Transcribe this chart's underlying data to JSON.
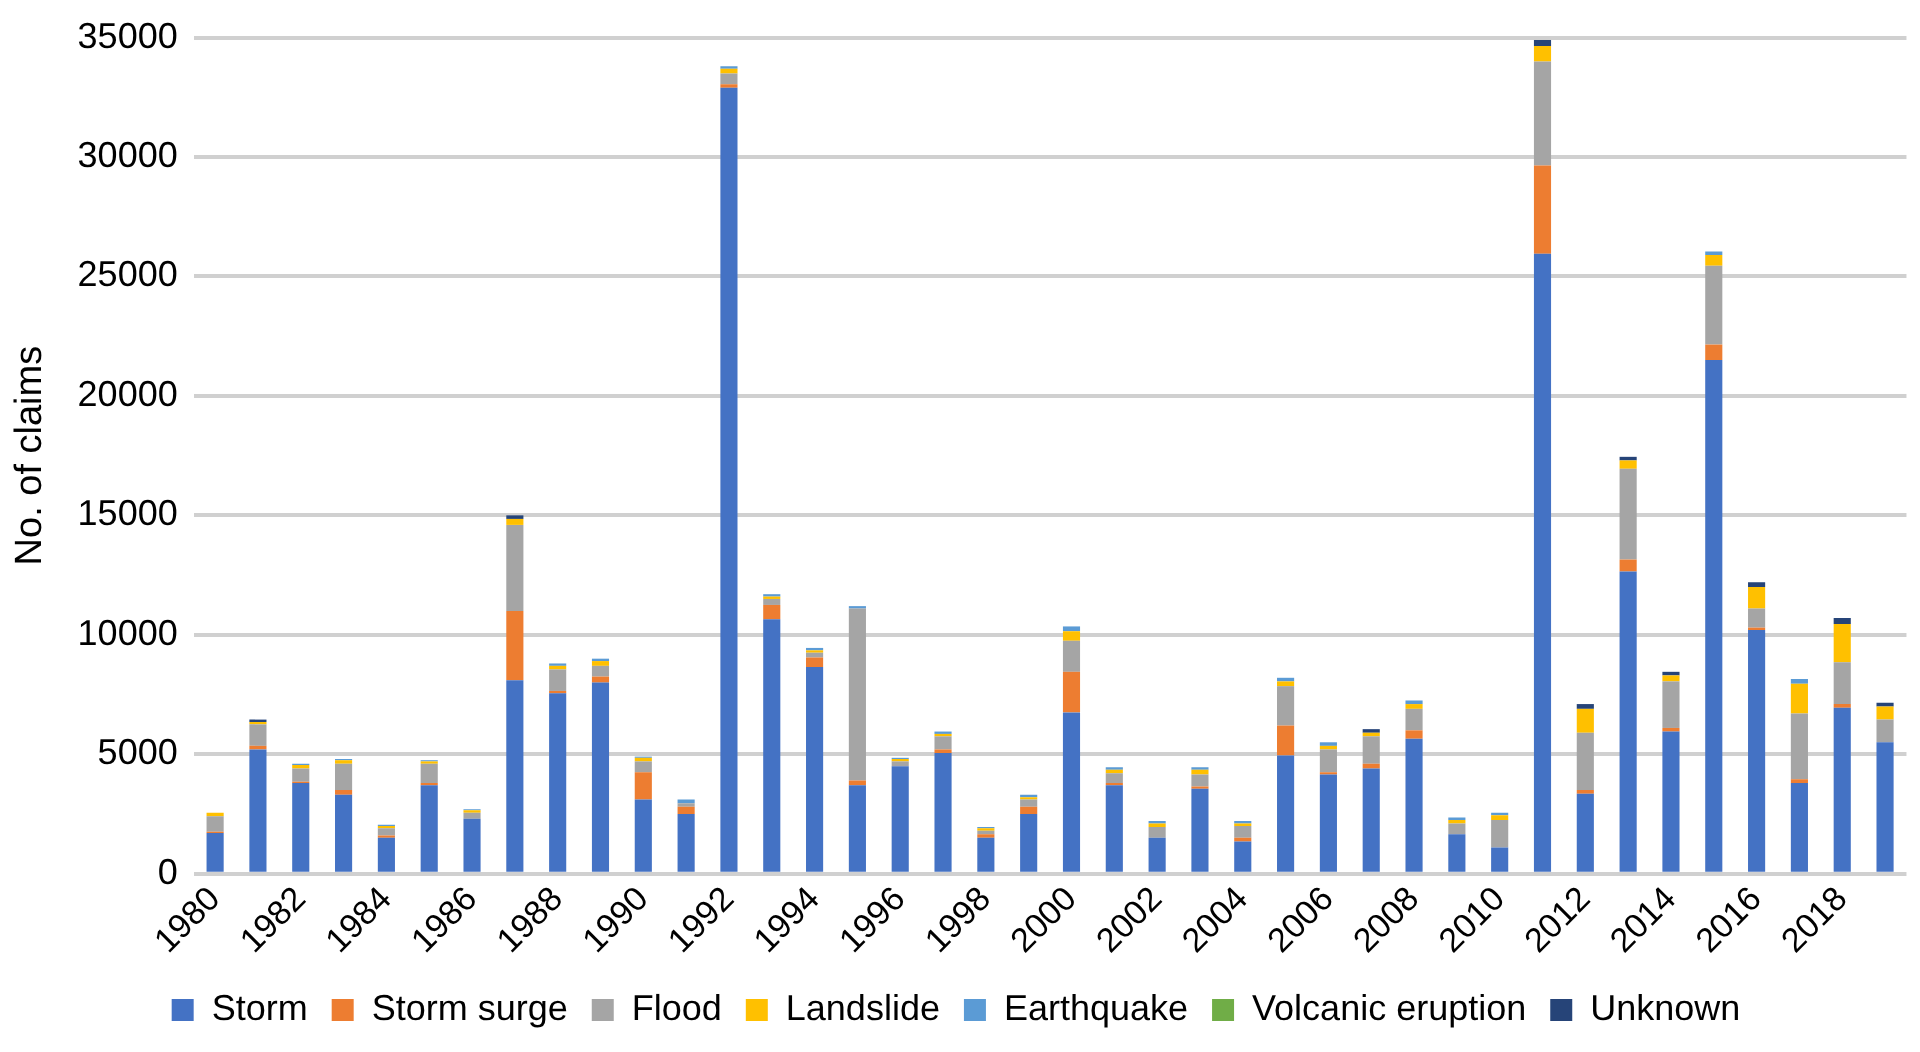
{
  "chart_data": {
    "type": "bar",
    "stacked": true,
    "ylabel": "No. of claims",
    "categories": [
      "1980",
      null,
      "1982",
      null,
      "1984",
      null,
      "1986",
      null,
      "1988",
      null,
      "1990",
      null,
      "1992",
      null,
      "1994",
      null,
      "1996",
      null,
      "1998",
      null,
      "2000",
      null,
      "2002",
      null,
      "2004",
      null,
      "2006",
      null,
      "2008",
      null,
      "2010",
      null,
      "2012",
      null,
      "2014",
      null,
      "2016",
      null,
      "2018",
      null
    ],
    "ylim": [
      0,
      35000
    ],
    "yticks": [
      0,
      5000,
      10000,
      15000,
      20000,
      25000,
      30000,
      35000
    ],
    "grid": "y",
    "legend": "bottom",
    "series": [
      {
        "name": "Storm",
        "color": "#4472c4",
        "values": [
          1700,
          5200,
          3800,
          3300,
          1500,
          3700,
          2300,
          8100,
          7550,
          8000,
          3100,
          2500,
          32900,
          10650,
          8650,
          3700,
          4500,
          5050,
          1500,
          2500,
          6750,
          3700,
          1500,
          3550,
          1350,
          4950,
          4150,
          4400,
          5650,
          1650,
          1100,
          25950,
          3350,
          12650,
          5950,
          21500,
          10200,
          3800,
          6950,
          5500
        ]
      },
      {
        "name": "Storm surge",
        "color": "#ed7d31",
        "values": [
          50,
          150,
          50,
          200,
          100,
          100,
          0,
          2900,
          100,
          250,
          1150,
          300,
          150,
          600,
          400,
          200,
          0,
          150,
          150,
          300,
          1700,
          100,
          0,
          100,
          150,
          1250,
          100,
          200,
          350,
          0,
          0,
          3700,
          150,
          500,
          150,
          650,
          100,
          150,
          150,
          0
        ]
      },
      {
        "name": "Flood",
        "color": "#a5a5a5",
        "values": [
          650,
          900,
          550,
          1100,
          300,
          800,
          250,
          3600,
          900,
          450,
          450,
          150,
          450,
          250,
          200,
          7200,
          200,
          550,
          150,
          300,
          1300,
          400,
          450,
          500,
          500,
          1650,
          950,
          1150,
          900,
          450,
          1150,
          4350,
          2400,
          3800,
          1950,
          3300,
          800,
          2750,
          1750,
          950
        ]
      },
      {
        "name": "Landslide",
        "color": "#ffc000",
        "values": [
          150,
          100,
          150,
          150,
          100,
          100,
          100,
          250,
          150,
          200,
          150,
          0,
          200,
          100,
          100,
          0,
          100,
          100,
          100,
          100,
          400,
          150,
          150,
          200,
          100,
          200,
          150,
          150,
          200,
          150,
          200,
          650,
          1000,
          350,
          250,
          450,
          900,
          1250,
          1600,
          550
        ]
      },
      {
        "name": "Earthquake",
        "color": "#5b9bd5",
        "values": [
          0,
          0,
          50,
          50,
          50,
          50,
          50,
          0,
          100,
          100,
          50,
          150,
          100,
          100,
          100,
          100,
          50,
          100,
          50,
          100,
          200,
          100,
          100,
          100,
          100,
          150,
          150,
          0,
          150,
          100,
          100,
          0,
          0,
          0,
          0,
          150,
          0,
          200,
          0,
          0
        ]
      },
      {
        "name": "Volcanic eruption",
        "color": "#70ad47",
        "values": [
          0,
          0,
          0,
          0,
          0,
          0,
          0,
          0,
          0,
          0,
          0,
          0,
          0,
          0,
          0,
          0,
          0,
          0,
          0,
          0,
          0,
          0,
          0,
          0,
          0,
          0,
          0,
          0,
          0,
          0,
          0,
          0,
          0,
          0,
          0,
          0,
          0,
          0,
          0,
          0
        ]
      },
      {
        "name": "Unknown",
        "color": "#264478",
        "values": [
          0,
          100,
          0,
          0,
          0,
          0,
          0,
          150,
          0,
          0,
          0,
          0,
          0,
          0,
          0,
          0,
          0,
          0,
          0,
          0,
          0,
          0,
          0,
          0,
          0,
          0,
          0,
          150,
          0,
          0,
          0,
          250,
          200,
          150,
          150,
          0,
          200,
          0,
          250,
          150
        ]
      }
    ]
  }
}
